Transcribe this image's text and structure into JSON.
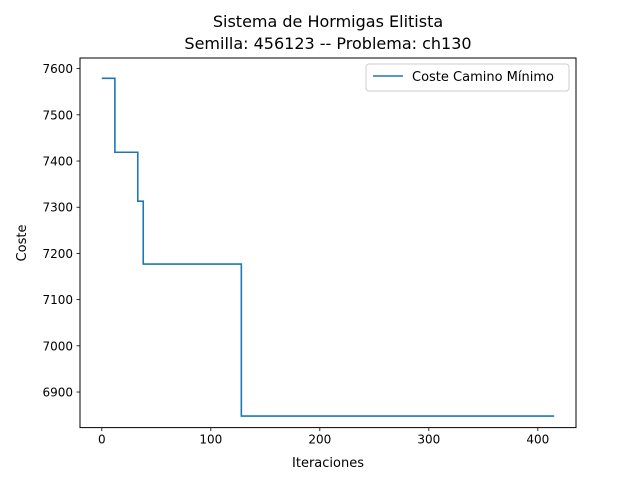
{
  "chart_data": {
    "type": "line",
    "title_line1": "Sistema de Hormigas Elitista",
    "title_line2": "Semilla: 456123 -- Problema: ch130",
    "xlabel": "Iteraciones",
    "ylabel": "Coste",
    "xlim": [
      -20,
      435
    ],
    "ylim": [
      6823,
      7623
    ],
    "xticks": [
      0,
      100,
      200,
      300,
      400
    ],
    "yticks": [
      6900,
      7000,
      7100,
      7200,
      7300,
      7400,
      7500,
      7600
    ],
    "xtick_labels": [
      "0",
      "100",
      "200",
      "300",
      "400"
    ],
    "ytick_labels": [
      "6900",
      "7000",
      "7100",
      "7200",
      "7300",
      "7400",
      "7500",
      "7600"
    ],
    "grid": false,
    "legend_position": "top-right",
    "series": [
      {
        "name": "Coste Camino Mínimo",
        "color": "#1f77b4",
        "step": "post",
        "x": [
          0,
          12,
          33,
          37,
          38,
          127,
          128,
          415
        ],
        "y": [
          7579,
          7419,
          7313,
          7313,
          7177,
          7177,
          6848,
          6848
        ]
      }
    ]
  }
}
